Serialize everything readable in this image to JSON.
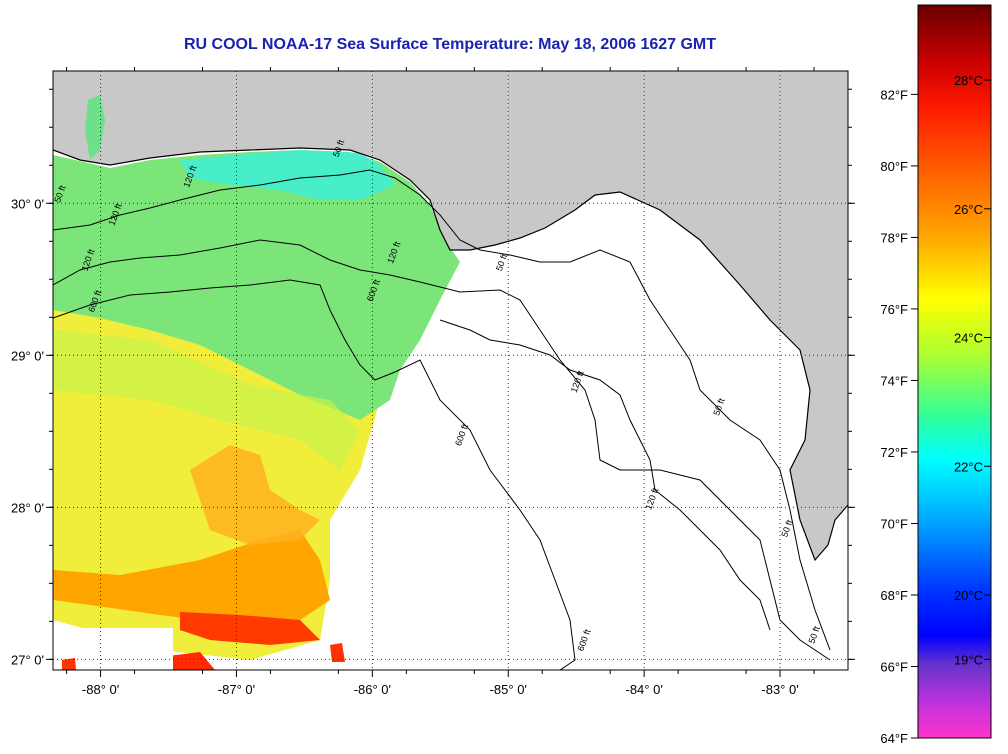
{
  "title": "RU COOL  NOAA-17  Sea Surface Temperature:  May 18, 2006 1627 GMT",
  "map": {
    "lon_range": [
      -88.35,
      -82.5
    ],
    "lat_range": [
      26.93,
      30.87
    ],
    "lon_ticks": [
      {
        "value": -88,
        "label": "-88° 0'"
      },
      {
        "value": -87,
        "label": "-87° 0'"
      },
      {
        "value": -86,
        "label": "-86° 0'"
      },
      {
        "value": -85,
        "label": "-85° 0'"
      },
      {
        "value": -84,
        "label": "-84° 0'"
      },
      {
        "value": -83,
        "label": "-83° 0'"
      }
    ],
    "lat_ticks": [
      {
        "value": 27,
        "label": "27° 0'"
      },
      {
        "value": 28,
        "label": "28° 0'"
      },
      {
        "value": 29,
        "label": "29° 0'"
      },
      {
        "value": 30,
        "label": "30° 0'"
      }
    ],
    "grid": "dotted",
    "land_color": "#c8c8c8",
    "no_data_color": "#ffffff",
    "contour_labels": [
      {
        "text": "600 ft",
        "lon": -88.05,
        "lat": 29.28
      },
      {
        "text": "120 ft",
        "lon": -88.1,
        "lat": 29.55
      },
      {
        "text": "50 ft",
        "lon": -88.3,
        "lat": 30.0
      },
      {
        "text": "50 ft",
        "lon": -85.05,
        "lat": 29.55
      },
      {
        "text": "600 ft",
        "lon": -86.0,
        "lat": 29.35
      },
      {
        "text": "120 ft",
        "lon": -85.85,
        "lat": 29.6
      },
      {
        "text": "120 ft",
        "lon": -84.5,
        "lat": 28.75
      },
      {
        "text": "600 ft",
        "lon": -85.35,
        "lat": 28.4
      },
      {
        "text": "120 ft",
        "lon": -83.95,
        "lat": 27.98
      },
      {
        "text": "50 ft",
        "lon": -83.45,
        "lat": 28.6
      },
      {
        "text": "50 ft",
        "lon": -82.95,
        "lat": 27.8
      },
      {
        "text": "600 ft",
        "lon": -84.45,
        "lat": 27.05
      },
      {
        "text": "50 ft",
        "lon": -82.75,
        "lat": 27.1
      },
      {
        "text": "50 ft",
        "lon": -86.25,
        "lat": 30.3
      },
      {
        "text": "120 ft",
        "lon": -87.35,
        "lat": 30.1
      },
      {
        "text": "120 ft",
        "lon": -87.9,
        "lat": 29.85
      }
    ]
  },
  "colorbar": {
    "fahrenheit": [
      {
        "value": 82,
        "label": "82°F"
      },
      {
        "value": 80,
        "label": "80°F"
      },
      {
        "value": 78,
        "label": "78°F"
      },
      {
        "value": 76,
        "label": "76°F"
      },
      {
        "value": 74,
        "label": "74°F"
      },
      {
        "value": 72,
        "label": "72°F"
      },
      {
        "value": 70,
        "label": "70°F"
      },
      {
        "value": 68,
        "label": "68°F"
      },
      {
        "value": 66,
        "label": "66°F"
      },
      {
        "value": 64,
        "label": "64°F"
      }
    ],
    "celsius": [
      {
        "value": 28,
        "label": "28°C"
      },
      {
        "value": 26,
        "label": "26°C"
      },
      {
        "value": 24,
        "label": "24°C"
      },
      {
        "value": 22,
        "label": "22°C"
      },
      {
        "value": 20,
        "label": "20°C"
      },
      {
        "value": 19,
        "label": "19°C"
      }
    ],
    "range_f": [
      64,
      84.5
    ],
    "stops": [
      {
        "at": 0.0,
        "color": "#6a0000"
      },
      {
        "at": 0.08,
        "color": "#cc0000"
      },
      {
        "at": 0.14,
        "color": "#ff1a00"
      },
      {
        "at": 0.24,
        "color": "#ff6a00"
      },
      {
        "at": 0.32,
        "color": "#ffaa00"
      },
      {
        "at": 0.4,
        "color": "#ffff00"
      },
      {
        "at": 0.48,
        "color": "#aaff33"
      },
      {
        "at": 0.56,
        "color": "#33ff99"
      },
      {
        "at": 0.62,
        "color": "#00ffff"
      },
      {
        "at": 0.7,
        "color": "#00aaff"
      },
      {
        "at": 0.8,
        "color": "#0033ff"
      },
      {
        "at": 0.86,
        "color": "#0000ff"
      },
      {
        "at": 0.9,
        "color": "#6633cc"
      },
      {
        "at": 0.95,
        "color": "#bb33dd"
      },
      {
        "at": 1.0,
        "color": "#ff33cc"
      }
    ]
  }
}
